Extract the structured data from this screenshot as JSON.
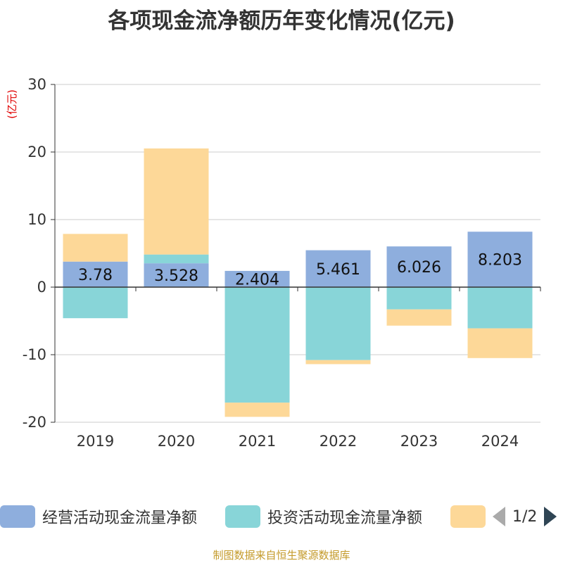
{
  "chart_data": {
    "type": "bar",
    "stacked": true,
    "title": "各项现金流净额历年变化情况(亿元)",
    "ylabel": "(亿元)",
    "ylim": [
      -20,
      30
    ],
    "yticks": [
      30,
      20,
      10,
      0,
      -10,
      -20
    ],
    "categories": [
      "2019",
      "2020",
      "2021",
      "2022",
      "2023",
      "2024"
    ],
    "grid": true,
    "legend_position": "bottom",
    "series": [
      {
        "name": "经营活动现金流量净额",
        "color": "#8eaedd",
        "values": [
          3.78,
          3.528,
          2.404,
          5.461,
          6.026,
          8.203
        ],
        "labels": [
          "3.78",
          "3.528",
          "2.404",
          "5.461",
          "6.026",
          "8.203"
        ]
      },
      {
        "name": "投资活动现金流量净额",
        "color": "#88d5d8",
        "values": [
          -4.6,
          1.3,
          -17.1,
          -10.8,
          -3.3,
          -6.1
        ]
      },
      {
        "name": "",
        "color": "#fdd898",
        "values": [
          4.1,
          15.7,
          -2.1,
          -0.6,
          -2.4,
          -4.4
        ]
      }
    ]
  },
  "legend": {
    "pager": "1/2"
  },
  "source": "制图数据来自恒生聚源数据库"
}
